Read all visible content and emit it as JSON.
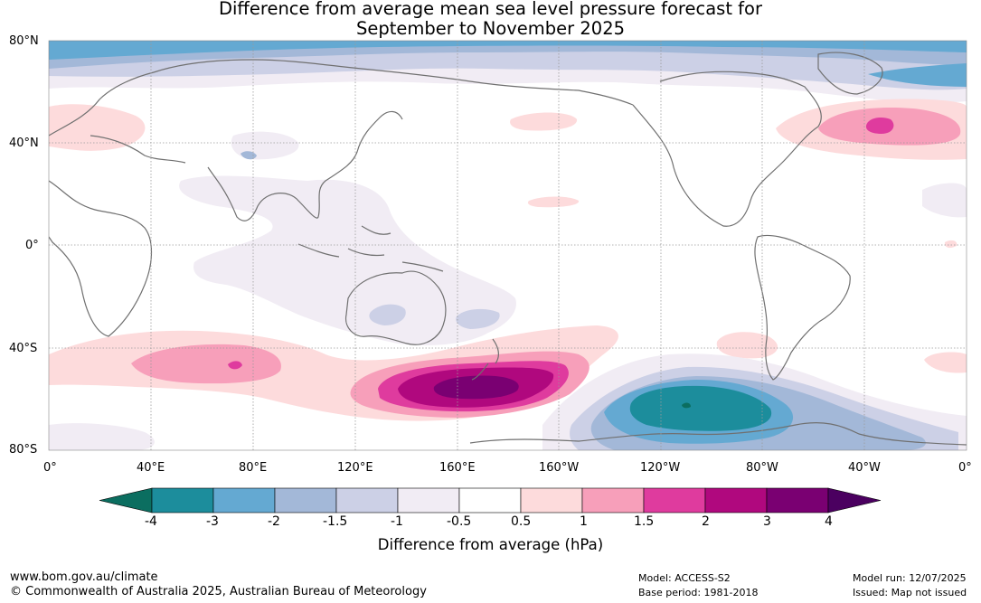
{
  "title_line1": "Difference from average mean sea level pressure forecast for",
  "title_line2": "September to November 2025",
  "lat_labels": [
    "80°N",
    "40°N",
    "0°",
    "40°S",
    "80°S"
  ],
  "lon_labels": [
    "0°",
    "40°E",
    "80°E",
    "120°E",
    "160°E",
    "160°W",
    "120°W",
    "80°W",
    "40°W",
    "0°"
  ],
  "colorbar": {
    "title": "Difference from average (hPa)",
    "ticks": [
      "-4",
      "-3",
      "-2",
      "-1.5",
      "-1",
      "-0.5",
      "0.5",
      "1",
      "1.5",
      "2",
      "3",
      "4"
    ],
    "colors": [
      "#0b6e60",
      "#1c8d9c",
      "#64a9d2",
      "#a3b8d8",
      "#ccd0e6",
      "#f1ecf4",
      "#ffffff",
      "#fddbdc",
      "#f79fba",
      "#df3b9e",
      "#b0087e",
      "#7a0072",
      "#4b0060"
    ]
  },
  "footer": {
    "website": "www.bom.gov.au/climate",
    "copyright": "© Commonwealth of Australia 2025, Australian Bureau of Meteorology",
    "model": "Model: ACCESS-S2",
    "base_period": "Base period: 1981-2018",
    "model_run": "Model run: 12/07/2025",
    "issued": "Issued: Map not issued"
  }
}
